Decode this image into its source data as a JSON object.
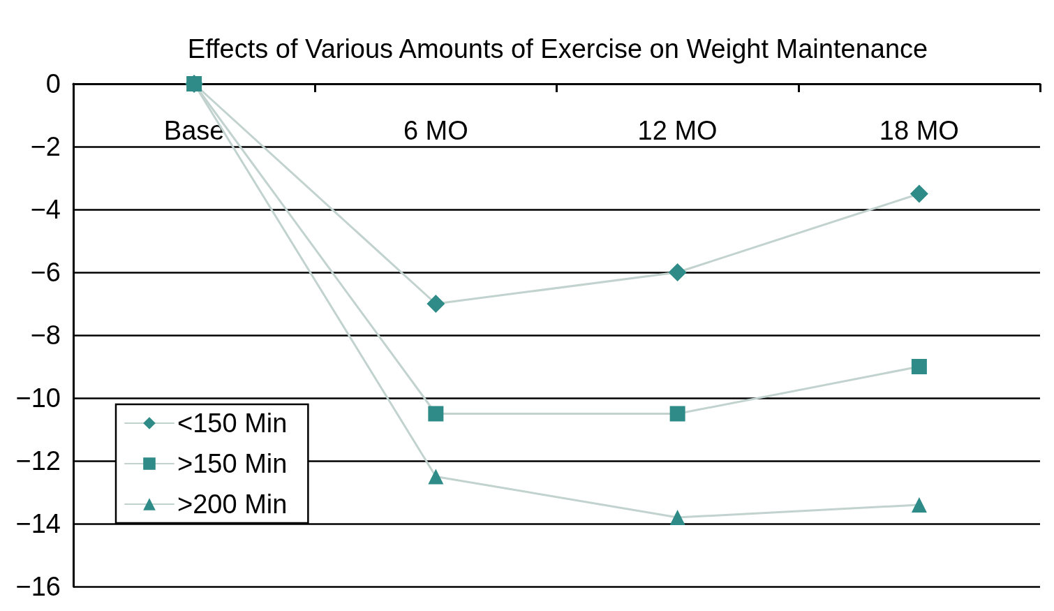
{
  "chart_data": {
    "type": "line",
    "title": "Effects of Various Amounts of Exercise on Weight Maintenance",
    "categories": [
      "Base",
      "6 MO",
      "12 MO",
      "18 MO"
    ],
    "series": [
      {
        "name": "<150 Min",
        "color": "#2e8b87",
        "marker": "diamond",
        "values": [
          0,
          -7,
          -6,
          -3.5
        ]
      },
      {
        "name": ">150 Min",
        "color": "#2e8b87",
        "marker": "square",
        "values": [
          0,
          -10.5,
          -10.5,
          -9
        ]
      },
      {
        "name": ">200 Min",
        "color": "#2e8b87",
        "marker": "triangle",
        "values": [
          0,
          -12.5,
          -13.8,
          -13.4
        ]
      }
    ],
    "ylim": [
      -16,
      0
    ],
    "yticks": [
      {
        "value": -16,
        "label": "−16"
      },
      {
        "value": -14,
        "label": "−14"
      },
      {
        "value": -12,
        "label": "−12"
      },
      {
        "value": -10,
        "label": "−10"
      },
      {
        "value": -8,
        "label": "−8"
      },
      {
        "value": -6,
        "label": "−6"
      },
      {
        "value": -4,
        "label": "−4"
      },
      {
        "value": -2,
        "label": "−2"
      },
      {
        "value": 0,
        "label": "0"
      }
    ],
    "grid": "y",
    "legend": "bottom left"
  }
}
